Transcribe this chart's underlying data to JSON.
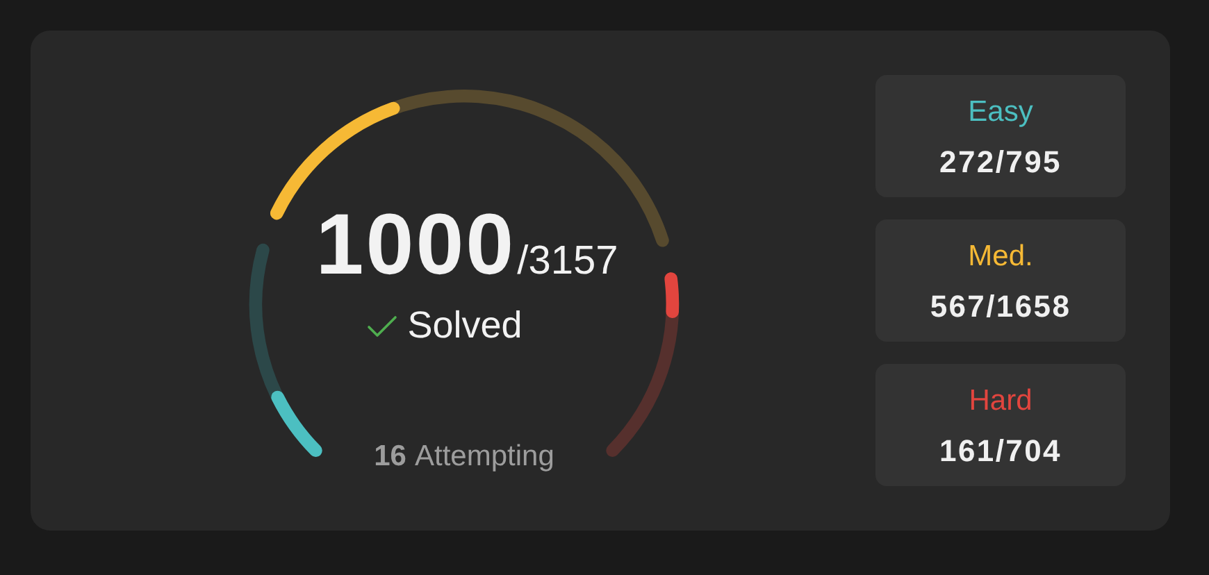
{
  "chart_data": {
    "type": "other",
    "categories": [
      "Easy",
      "Med.",
      "Hard"
    ],
    "series": [
      {
        "values": [
          795,
          1658,
          704
        ],
        "colors": [
          "#2c4849",
          "#574a2e",
          "#56302d"
        ],
        "value_labels": [
          "/795",
          "/1658",
          "/704"
        ]
      },
      {
        "values": [
          272,
          567,
          161
        ],
        "colors": [
          "#4cbfc1",
          "#f6b935",
          "#e2453e"
        ],
        "value_labels": [
          "272",
          "567",
          "161"
        ]
      }
    ],
    "annotations": [
      "1000",
      "/3157",
      "Solved",
      "16",
      "Attempting"
    ]
  }
}
